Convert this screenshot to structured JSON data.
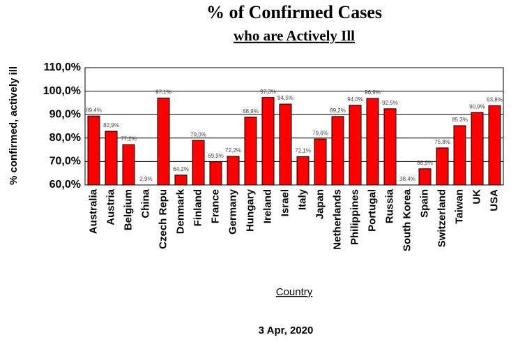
{
  "chart_data": {
    "type": "bar",
    "title": "% of Confirmed Cases",
    "subtitle": "who are Actively Ill",
    "y_label": "% confirmed, actively ill",
    "x_label": "Country",
    "caption": "3 Apr, 2020",
    "categories": [
      "Australia",
      "Austria",
      "Belgium",
      "China",
      "Czech Repu",
      "Denmark",
      "Finland",
      "France",
      "Germany",
      "Hungary",
      "Ireland",
      "Israel",
      "Italy",
      "Japan",
      "Netherlands",
      "Philippines",
      "Portugal",
      "Russia",
      "South Korea",
      "Spain",
      "Switzerland",
      "Taiwan",
      "UK",
      "USA"
    ],
    "values": [
      89.4,
      82.9,
      77.2,
      2.9,
      97.1,
      64.2,
      79.0,
      69.9,
      72.2,
      88.9,
      97.3,
      94.5,
      72.1,
      79.6,
      89.2,
      94.0,
      96.9,
      92.5,
      38.4,
      66.9,
      75.8,
      85.3,
      90.9,
      93.8
    ],
    "value_labels": [
      "89,4%",
      "82,9%",
      "77,2%",
      "2,9%",
      "97,1%",
      "64,2%",
      "79,0%",
      "69,9%",
      "72,2%",
      "88,9%",
      "97,3%",
      "94,5%",
      "72,1%",
      "79,6%",
      "89,2%",
      "94,0%",
      "96,9%",
      "92,5%",
      "38,4%",
      "66,9%",
      "75,8%",
      "85,3%",
      "90,9%",
      "93,8%"
    ],
    "color": "#ff0000",
    "ylim": [
      60,
      110
    ],
    "yticks": [
      {
        "value": 60,
        "label": "60,0%"
      },
      {
        "value": 70,
        "label": "70,0%"
      },
      {
        "value": 80,
        "label": "80,0%"
      },
      {
        "value": 90,
        "label": "90,0%"
      },
      {
        "value": 100,
        "label": "100,0%"
      },
      {
        "value": 110,
        "label": "110,0%"
      }
    ],
    "grid": true
  }
}
